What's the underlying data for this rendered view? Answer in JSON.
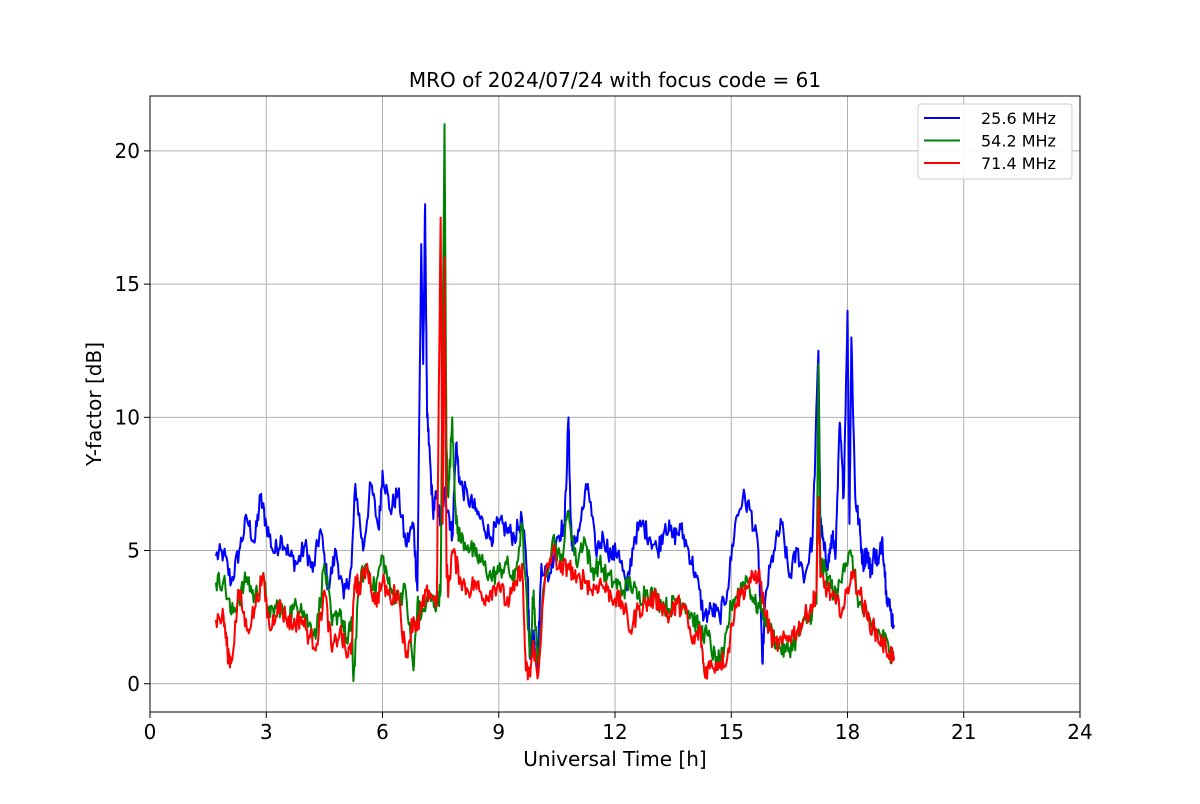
{
  "chart_data": {
    "type": "line",
    "title": "MRO of 2024/07/24 with focus code = 61",
    "xlabel": "Universal Time [h]",
    "ylabel": "Y-factor [dB]",
    "xlim": [
      0,
      24
    ],
    "ylim": [
      -1.06,
      22.06
    ],
    "xticks": [
      0,
      3,
      6,
      9,
      12,
      15,
      18,
      21,
      24
    ],
    "yticks": [
      0,
      5,
      10,
      15,
      20
    ],
    "grid": true,
    "legend_position": "top-right",
    "series": [
      {
        "name": "25.6 MHz",
        "color": "#0000ff",
        "x": [
          1.7,
          1.9,
          2.1,
          2.3,
          2.5,
          2.7,
          2.85,
          3.0,
          3.2,
          3.4,
          3.6,
          3.8,
          4.0,
          4.2,
          4.4,
          4.6,
          4.8,
          5.0,
          5.2,
          5.3,
          5.5,
          5.7,
          5.9,
          6.0,
          6.2,
          6.4,
          6.6,
          6.8,
          6.9,
          7.0,
          7.05,
          7.1,
          7.15,
          7.2,
          7.3,
          7.4,
          7.5,
          7.6,
          7.7,
          7.8,
          7.9,
          8.0,
          8.2,
          8.4,
          8.6,
          8.8,
          9.0,
          9.2,
          9.4,
          9.6,
          9.75,
          9.8,
          9.9,
          10.0,
          10.1,
          10.3,
          10.5,
          10.7,
          10.8,
          10.85,
          10.9,
          11.1,
          11.3,
          11.5,
          11.7,
          11.9,
          12.1,
          12.3,
          12.5,
          12.7,
          12.9,
          13.1,
          13.3,
          13.5,
          13.7,
          13.9,
          14.1,
          14.3,
          14.5,
          14.7,
          14.9,
          15.1,
          15.3,
          15.5,
          15.7,
          15.8,
          15.9,
          16.1,
          16.3,
          16.5,
          16.7,
          16.9,
          17.1,
          17.25,
          17.3,
          17.4,
          17.5,
          17.6,
          17.7,
          17.8,
          17.9,
          18.0,
          18.05,
          18.1,
          18.2,
          18.3,
          18.4,
          18.5,
          18.6,
          18.7,
          18.8,
          18.9,
          19.0,
          19.1,
          19.2
        ],
        "y": [
          4.8,
          4.9,
          3.8,
          5.0,
          6.2,
          5.3,
          7.0,
          6.0,
          4.9,
          5.5,
          4.8,
          4.5,
          5.2,
          4.2,
          5.8,
          3.6,
          5.0,
          3.2,
          4.4,
          7.5,
          5.0,
          7.5,
          5.8,
          8.0,
          6.5,
          7.2,
          5.2,
          6.0,
          3.5,
          16.5,
          12.0,
          18.0,
          10.0,
          9.0,
          6.5,
          7.0,
          6.0,
          7.2,
          6.5,
          5.5,
          9.0,
          7.5,
          7.0,
          6.5,
          6.0,
          5.5,
          6.0,
          5.8,
          5.5,
          6.2,
          4.0,
          1.0,
          2.0,
          0.5,
          4.5,
          4.0,
          5.5,
          6.0,
          10.0,
          6.5,
          5.0,
          6.0,
          7.5,
          5.0,
          5.5,
          4.8,
          5.0,
          3.5,
          5.5,
          6.0,
          5.5,
          5.0,
          6.0,
          5.5,
          5.8,
          5.0,
          4.0,
          2.5,
          2.8,
          2.5,
          3.5,
          6.0,
          7.0,
          6.5,
          5.0,
          0.8,
          3.5,
          5.0,
          6.0,
          4.0,
          5.0,
          4.0,
          5.5,
          12.5,
          6.0,
          5.0,
          4.5,
          5.5,
          5.0,
          9.8,
          7.0,
          14.0,
          6.0,
          13.0,
          7.0,
          6.0,
          4.5,
          5.0,
          4.2,
          5.0,
          4.5,
          5.5,
          3.5,
          2.8,
          2.2
        ]
      },
      {
        "name": "54.2 MHz",
        "color": "#008000",
        "x": [
          1.7,
          1.9,
          2.1,
          2.3,
          2.5,
          2.7,
          2.9,
          3.1,
          3.3,
          3.5,
          3.7,
          3.9,
          4.1,
          4.3,
          4.5,
          4.7,
          4.9,
          5.1,
          5.2,
          5.25,
          5.4,
          5.6,
          5.8,
          6.0,
          6.2,
          6.4,
          6.6,
          6.8,
          6.9,
          7.0,
          7.2,
          7.4,
          7.5,
          7.6,
          7.65,
          7.7,
          7.8,
          7.9,
          8.0,
          8.2,
          8.4,
          8.6,
          8.8,
          9.0,
          9.2,
          9.4,
          9.6,
          9.8,
          9.9,
          10.0,
          10.2,
          10.4,
          10.6,
          10.8,
          11.0,
          11.2,
          11.4,
          11.6,
          11.8,
          12.0,
          12.2,
          12.4,
          12.6,
          12.8,
          13.0,
          13.2,
          13.4,
          13.6,
          13.8,
          14.0,
          14.2,
          14.4,
          14.6,
          14.8,
          15.0,
          15.2,
          15.4,
          15.6,
          15.8,
          16.0,
          16.2,
          16.4,
          16.6,
          16.8,
          17.0,
          17.2,
          17.25,
          17.3,
          17.5,
          17.7,
          17.9,
          18.1,
          18.3,
          18.5,
          18.7,
          18.9,
          19.1,
          19.2
        ],
        "y": [
          3.8,
          3.9,
          2.6,
          3.2,
          4.0,
          3.2,
          4.0,
          2.5,
          3.0,
          2.5,
          2.8,
          3.0,
          2.2,
          2.0,
          4.5,
          2.2,
          2.8,
          1.5,
          2.5,
          0.1,
          3.8,
          4.5,
          3.5,
          4.8,
          3.5,
          3.2,
          3.5,
          0.5,
          3.0,
          2.5,
          3.2,
          3.0,
          3.5,
          21.0,
          9.0,
          7.0,
          10.0,
          6.0,
          5.5,
          5.2,
          4.8,
          4.5,
          4.0,
          4.2,
          4.5,
          3.8,
          6.0,
          1.0,
          3.5,
          0.8,
          4.0,
          5.5,
          4.5,
          6.5,
          4.5,
          5.5,
          4.2,
          4.5,
          4.0,
          3.8,
          3.5,
          3.8,
          3.2,
          3.5,
          3.3,
          3.0,
          2.8,
          3.2,
          3.0,
          2.5,
          2.0,
          1.8,
          0.8,
          1.0,
          3.0,
          3.5,
          4.0,
          3.0,
          2.8,
          2.0,
          1.5,
          1.2,
          1.5,
          2.0,
          2.5,
          3.0,
          12.0,
          4.5,
          4.0,
          3.2,
          4.5,
          4.8,
          3.0,
          2.5,
          2.0,
          1.8,
          1.2,
          1.0
        ]
      },
      {
        "name": "71.4 MHz",
        "color": "#ff0000",
        "x": [
          1.7,
          1.9,
          2.0,
          2.1,
          2.3,
          2.5,
          2.7,
          2.9,
          3.1,
          3.3,
          3.5,
          3.7,
          3.9,
          4.1,
          4.3,
          4.5,
          4.7,
          4.9,
          5.1,
          5.2,
          5.3,
          5.4,
          5.6,
          5.8,
          6.0,
          6.2,
          6.4,
          6.6,
          6.8,
          6.9,
          7.0,
          7.2,
          7.4,
          7.5,
          7.55,
          7.6,
          7.65,
          7.7,
          7.8,
          8.0,
          8.2,
          8.4,
          8.6,
          8.8,
          9.0,
          9.2,
          9.4,
          9.6,
          9.7,
          9.8,
          9.9,
          10.0,
          10.2,
          10.4,
          10.6,
          10.8,
          11.0,
          11.2,
          11.4,
          11.6,
          11.8,
          12.0,
          12.2,
          12.4,
          12.6,
          12.8,
          13.0,
          13.2,
          13.4,
          13.6,
          13.8,
          14.0,
          14.2,
          14.3,
          14.5,
          14.7,
          14.9,
          15.1,
          15.3,
          15.5,
          15.7,
          15.9,
          16.1,
          16.3,
          16.5,
          16.7,
          16.9,
          17.1,
          17.2,
          17.25,
          17.3,
          17.5,
          17.7,
          17.9,
          18.1,
          18.3,
          18.5,
          18.7,
          18.9,
          19.1,
          19.2
        ],
        "y": [
          2.4,
          2.5,
          1.2,
          0.8,
          3.5,
          2.0,
          2.8,
          4.0,
          2.0,
          3.0,
          2.5,
          2.2,
          2.5,
          1.8,
          1.5,
          3.5,
          1.2,
          2.0,
          1.0,
          1.5,
          4.0,
          3.5,
          4.5,
          3.0,
          3.8,
          3.2,
          3.5,
          1.0,
          2.5,
          2.0,
          2.8,
          3.5,
          3.0,
          17.5,
          6.0,
          16.0,
          4.5,
          3.5,
          5.0,
          4.0,
          3.5,
          3.8,
          3.2,
          3.5,
          3.8,
          3.0,
          3.5,
          4.5,
          0.5,
          0.3,
          1.5,
          0.2,
          4.0,
          5.0,
          4.2,
          4.5,
          3.8,
          4.0,
          3.5,
          3.8,
          3.5,
          3.2,
          3.0,
          2.0,
          2.8,
          3.0,
          3.2,
          3.0,
          2.5,
          3.0,
          2.8,
          1.5,
          2.0,
          0.5,
          0.7,
          0.8,
          1.0,
          3.0,
          3.5,
          3.8,
          4.2,
          2.5,
          1.5,
          1.5,
          1.8,
          2.0,
          2.5,
          3.0,
          3.5,
          7.0,
          4.0,
          3.5,
          3.0,
          2.8,
          4.2,
          3.5,
          2.5,
          2.0,
          1.5,
          1.2,
          0.9
        ]
      }
    ]
  }
}
